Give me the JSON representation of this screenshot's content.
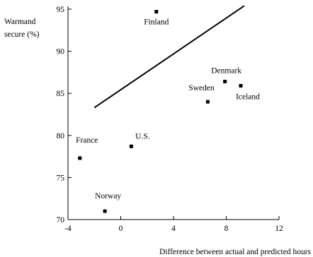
{
  "chart_data": {
    "type": "scatter",
    "title": "",
    "ylabel_lines": [
      "Warmand",
      "secure (%)"
    ],
    "xlabel": "Difference between actual and predicted hours",
    "xlim": [
      -4,
      12
    ],
    "ylim": [
      70,
      95
    ],
    "xticks": [
      -4,
      0,
      4,
      8,
      12
    ],
    "yticks": [
      70,
      75,
      80,
      85,
      90,
      95
    ],
    "grid": false,
    "points": [
      {
        "label": "Finland",
        "x": 2.7,
        "y": 94.7
      },
      {
        "label": "Denmark",
        "x": 7.9,
        "y": 86.4
      },
      {
        "label": "Iceland",
        "x": 9.1,
        "y": 85.9
      },
      {
        "label": "Sweden",
        "x": 6.6,
        "y": 84.0
      },
      {
        "label": "U.S.",
        "x": 0.8,
        "y": 78.7
      },
      {
        "label": "France",
        "x": -3.1,
        "y": 77.3
      },
      {
        "label": "Norway",
        "x": -1.2,
        "y": 71.0
      }
    ],
    "trend_line": {
      "x1": -2.0,
      "y1": 83.3,
      "x2": 12.0,
      "y2": 98.2
    }
  }
}
